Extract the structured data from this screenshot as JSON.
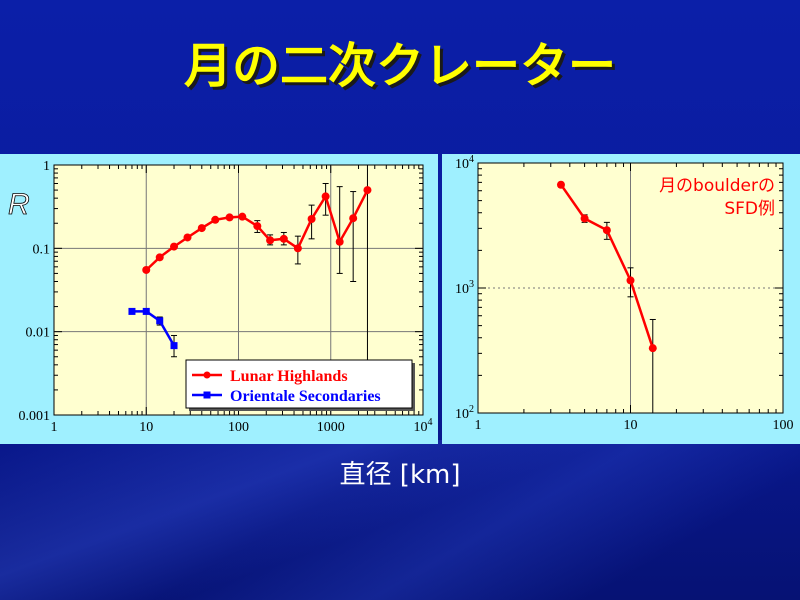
{
  "slide": {
    "title": "月の二次クレーター",
    "x_caption": "直径 [km]"
  },
  "colors": {
    "title": "#ffff00",
    "background": "#0b1fa8",
    "panel": "#9ff0ff",
    "plot_area": "#ffffd0",
    "red_series": "#ff0000",
    "blue_series": "#0000ff"
  },
  "chart_data": [
    {
      "type": "line",
      "ylabel": "R",
      "xscale": "log",
      "yscale": "log",
      "xlim": [
        1,
        10000
      ],
      "ylim": [
        0.001,
        1
      ],
      "x_ticks": [
        {
          "value": 1,
          "label": "1"
        },
        {
          "value": 10,
          "label": "10"
        },
        {
          "value": 100,
          "label": "100"
        },
        {
          "value": 1000,
          "label": "1000"
        },
        {
          "value": 10000,
          "label": "10",
          "exp": "4"
        }
      ],
      "y_ticks": [
        {
          "value": 1,
          "label": "1"
        },
        {
          "value": 0.1,
          "label": "0.1"
        },
        {
          "value": 0.01,
          "label": "0.01"
        },
        {
          "value": 0.001,
          "label": "0.001"
        }
      ],
      "grid": true,
      "legend_position": "bottom-right",
      "series": [
        {
          "name": "Lunar Highlands",
          "color": "#ff0000",
          "marker": "circle",
          "points": [
            {
              "x": 10,
              "y": 0.055
            },
            {
              "x": 14,
              "y": 0.078
            },
            {
              "x": 20,
              "y": 0.105
            },
            {
              "x": 28,
              "y": 0.135
            },
            {
              "x": 40,
              "y": 0.175
            },
            {
              "x": 56,
              "y": 0.22
            },
            {
              "x": 80,
              "y": 0.235
            },
            {
              "x": 110,
              "y": 0.24
            },
            {
              "x": 160,
              "y": 0.185,
              "err": [
                0.155,
                0.215
              ]
            },
            {
              "x": 220,
              "y": 0.125,
              "err": [
                0.11,
                0.145
              ]
            },
            {
              "x": 310,
              "y": 0.13,
              "err": [
                0.11,
                0.155
              ]
            },
            {
              "x": 440,
              "y": 0.1,
              "err": [
                0.065,
                0.14
              ]
            },
            {
              "x": 620,
              "y": 0.225,
              "err": [
                0.13,
                0.33
              ]
            },
            {
              "x": 880,
              "y": 0.42,
              "err": [
                0.25,
                0.6
              ]
            },
            {
              "x": 1250,
              "y": 0.12,
              "err": [
                0.05,
                0.55
              ]
            },
            {
              "x": 1750,
              "y": 0.23,
              "err": [
                0.04,
                0.48
              ]
            },
            {
              "x": 2500,
              "y": 0.5,
              "err": [
                0.001,
                1
              ]
            }
          ]
        },
        {
          "name": "Orientale Secondaries",
          "color": "#0000ff",
          "marker": "square",
          "points": [
            {
              "x": 7,
              "y": 0.0175
            },
            {
              "x": 10,
              "y": 0.0175
            },
            {
              "x": 14,
              "y": 0.0135,
              "err": [
                0.012,
                0.015
              ]
            },
            {
              "x": 20,
              "y": 0.0068,
              "err": [
                0.005,
                0.009
              ]
            }
          ]
        }
      ]
    },
    {
      "type": "line",
      "xscale": "log",
      "yscale": "log",
      "xlim": [
        1,
        100
      ],
      "ylim": [
        100,
        10000
      ],
      "x_ticks": [
        {
          "value": 1,
          "label": "1"
        },
        {
          "value": 10,
          "label": "10"
        },
        {
          "value": 100,
          "label": "100"
        }
      ],
      "y_ticks": [
        {
          "value": 100,
          "label": "10",
          "exp": "2"
        },
        {
          "value": 1000,
          "label": "10",
          "exp": "3"
        },
        {
          "value": 10000,
          "label": "10",
          "exp": "4"
        }
      ],
      "grid": true,
      "annotation": [
        "月のboulderの",
        "SFD例"
      ],
      "series": [
        {
          "color": "#ff0000",
          "marker": "circle",
          "points": [
            {
              "x": 3.5,
              "y": 6700
            },
            {
              "x": 5,
              "y": 3600,
              "err": [
                3350,
                3850
              ]
            },
            {
              "x": 7,
              "y": 2900,
              "err": [
                2450,
                3350
              ]
            },
            {
              "x": 10,
              "y": 1150,
              "err": [
                850,
                1450
              ]
            },
            {
              "x": 14,
              "y": 330,
              "err": [
                100,
                560
              ]
            }
          ]
        }
      ]
    }
  ]
}
